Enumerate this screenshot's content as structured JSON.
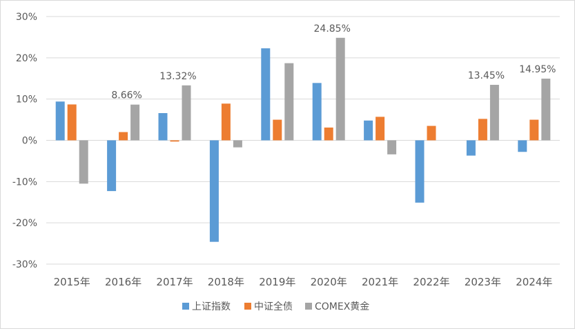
{
  "chart_data": {
    "type": "bar",
    "categories": [
      "2015年",
      "2016年",
      "2017年",
      "2018年",
      "2019年",
      "2020年",
      "2021年",
      "2022年",
      "2023年",
      "2024年"
    ],
    "series": [
      {
        "name": "上证指数",
        "color": "#5b9bd5",
        "values": [
          9.4,
          -12.3,
          6.6,
          -24.6,
          22.3,
          13.9,
          4.8,
          -15.1,
          -3.7,
          -2.8
        ]
      },
      {
        "name": "中证全债",
        "color": "#ed7d31",
        "values": [
          8.7,
          2.0,
          -0.3,
          8.9,
          5.0,
          3.1,
          5.7,
          3.5,
          5.2,
          5.0
        ]
      },
      {
        "name": "COMEX黄金",
        "color": "#a5a5a5",
        "values": [
          -10.5,
          8.66,
          13.32,
          -1.7,
          18.7,
          24.85,
          -3.4,
          0,
          13.45,
          14.95
        ]
      }
    ],
    "yticks": [
      "30%",
      "20%",
      "10%",
      "0%",
      "-10%",
      "-20%",
      "-30%"
    ],
    "ylim": [
      -30,
      30
    ],
    "grid": true,
    "legend_position": "bottom",
    "annotations": [
      {
        "series": 2,
        "index": 1,
        "text": "8.66%"
      },
      {
        "series": 2,
        "index": 2,
        "text": "13.32%"
      },
      {
        "series": 2,
        "index": 5,
        "text": "24.85%"
      },
      {
        "series": 2,
        "index": 8,
        "text": "13.45%"
      },
      {
        "series": 2,
        "index": 9,
        "text": "14.95%"
      }
    ]
  }
}
